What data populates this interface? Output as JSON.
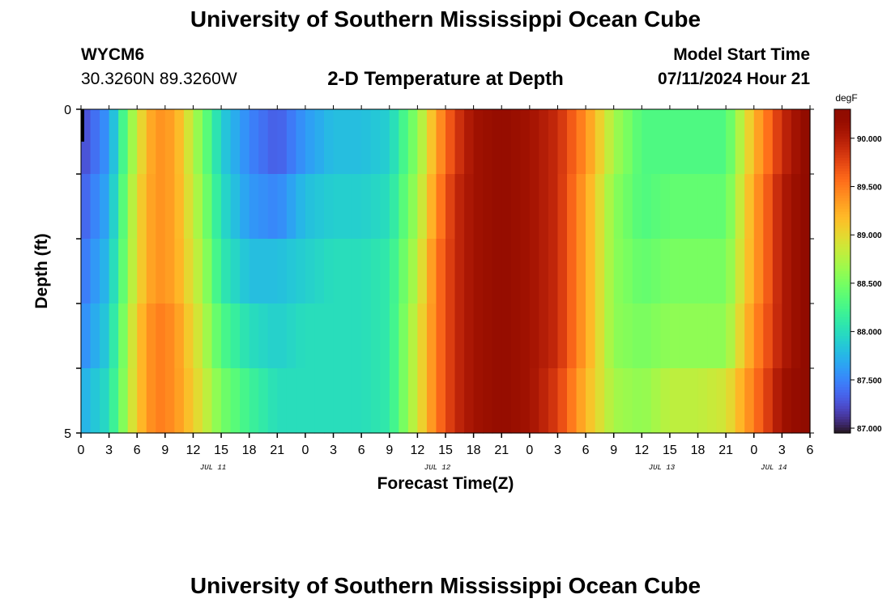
{
  "header": {
    "title": "University of Southern Mississippi Ocean Cube",
    "station_id": "WYCM6",
    "coordinates": "30.3260N  89.3260W",
    "subtitle": "2-D Temperature at Depth",
    "model_start_label": "Model Start Time",
    "model_start_value": "07/11/2024 Hour 21"
  },
  "footer": {
    "title": "University of Southern Mississippi Ocean Cube"
  },
  "chart_data": {
    "type": "heatmap",
    "title": "2-D Temperature at Depth",
    "xlabel": "Forecast Time(Z)",
    "ylabel": "Depth (ft)",
    "x_tick_labels": [
      "0",
      "3",
      "6",
      "9",
      "12",
      "15",
      "18",
      "21",
      "0",
      "3",
      "6",
      "9",
      "12",
      "15",
      "18",
      "21",
      "0",
      "3",
      "6",
      "9",
      "12",
      "15",
      "18",
      "21",
      "0",
      "3",
      "6"
    ],
    "date_labels": [
      "JUL 11",
      "JUL 12",
      "JUL 13",
      "JUL 14"
    ],
    "y_tick_labels": [
      "0",
      "5"
    ],
    "y_range": [
      0,
      5
    ],
    "colorbar": {
      "unit": "degF",
      "range": [
        86.95,
        90.3
      ],
      "tick_values": [
        87.0,
        87.5,
        88.0,
        88.5,
        89.0,
        89.5,
        90.0
      ],
      "tick_labels": [
        "87.000",
        "87.500",
        "88.000",
        "88.500",
        "89.000",
        "89.500",
        "90.000"
      ],
      "colormap": "turbo"
    },
    "time_step_hours": 1,
    "forecast_hours": 78,
    "depth_levels_ft": [
      0,
      1,
      2,
      3,
      4,
      5
    ],
    "keyframes": {
      "hours": [
        0,
        3,
        6,
        8,
        10,
        13,
        15,
        18,
        21,
        24,
        27,
        30,
        33,
        36,
        38,
        40,
        42,
        45,
        48,
        51,
        54,
        57,
        60,
        63,
        66,
        69,
        72,
        75,
        78
      ],
      "rows": [
        [
          87.2,
          87.6,
          88.9,
          89.4,
          89.3,
          88.5,
          87.9,
          87.5,
          87.3,
          87.6,
          87.8,
          87.8,
          87.9,
          88.6,
          89.3,
          89.8,
          90.1,
          90.2,
          90.1,
          89.9,
          89.4,
          88.7,
          88.3,
          88.3,
          88.3,
          88.3,
          89.2,
          89.9,
          90.3
        ],
        [
          87.3,
          87.7,
          89.0,
          89.4,
          89.3,
          88.6,
          88.0,
          87.6,
          87.5,
          87.8,
          87.9,
          87.9,
          88.0,
          88.7,
          89.4,
          89.9,
          90.1,
          90.2,
          90.1,
          89.9,
          89.3,
          88.6,
          88.3,
          88.4,
          88.4,
          88.4,
          89.3,
          90.0,
          90.3
        ],
        [
          87.4,
          87.8,
          89.0,
          89.4,
          89.3,
          88.7,
          88.1,
          87.8,
          87.8,
          87.9,
          88.0,
          88.0,
          88.1,
          88.8,
          89.5,
          89.9,
          90.1,
          90.2,
          90.1,
          89.9,
          89.3,
          88.6,
          88.4,
          88.5,
          88.5,
          88.5,
          89.3,
          90.0,
          90.3
        ],
        [
          87.5,
          87.9,
          89.1,
          89.5,
          89.4,
          88.8,
          88.3,
          88.0,
          87.9,
          88.0,
          88.0,
          88.0,
          88.1,
          88.9,
          89.5,
          89.9,
          90.1,
          90.2,
          90.1,
          89.9,
          89.3,
          88.6,
          88.5,
          88.6,
          88.6,
          88.6,
          89.4,
          90.0,
          90.3
        ],
        [
          87.7,
          88.0,
          89.1,
          89.5,
          89.4,
          88.9,
          88.5,
          88.2,
          88.0,
          88.0,
          88.0,
          88.0,
          88.1,
          88.9,
          89.5,
          89.9,
          90.1,
          90.2,
          90.1,
          89.8,
          89.2,
          88.7,
          88.6,
          88.8,
          88.8,
          88.9,
          89.5,
          90.1,
          90.3
        ],
        [
          87.9,
          88.2,
          89.1,
          89.6,
          89.5,
          89.0,
          88.8,
          88.5,
          88.3,
          88.1,
          88.0,
          87.9,
          88.2,
          89.0,
          89.6,
          90.0,
          90.1,
          90.2,
          90.1,
          89.8,
          89.2,
          88.8,
          88.8,
          88.9,
          88.9,
          89.0,
          89.6,
          90.1,
          90.3
        ]
      ]
    }
  }
}
